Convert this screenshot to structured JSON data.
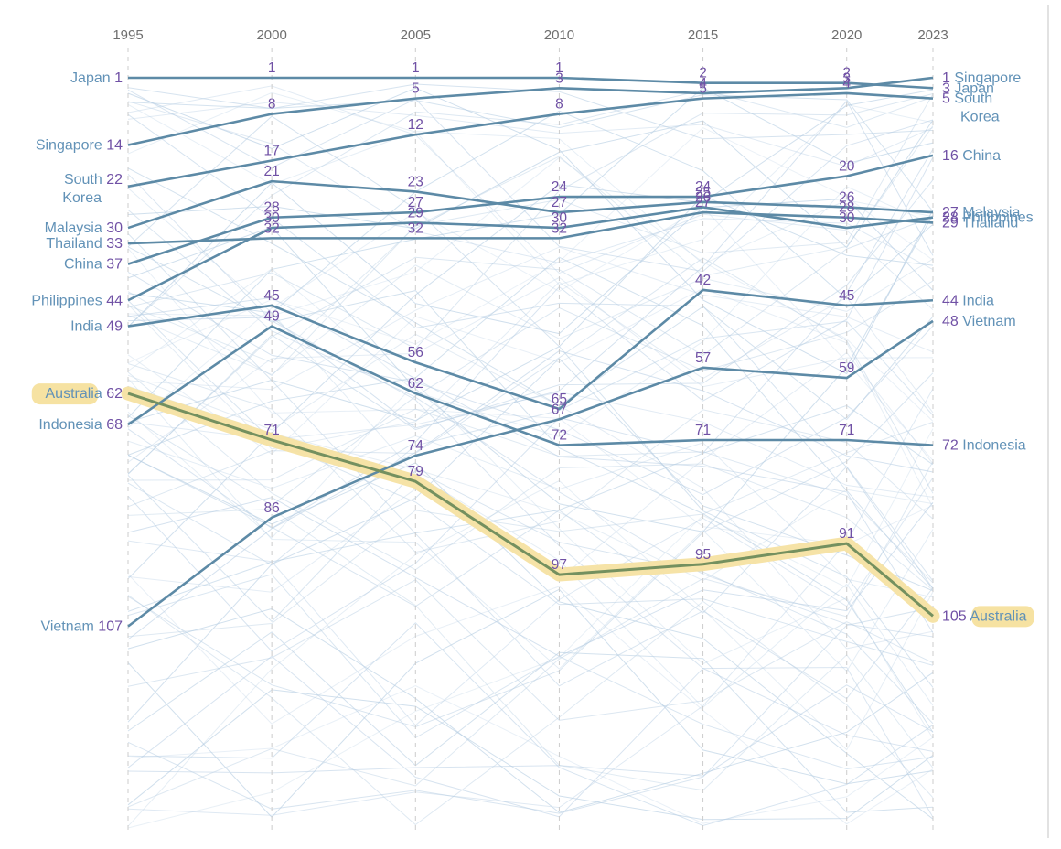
{
  "chart_data": {
    "type": "line",
    "subtype": "bump-rank-chart",
    "x": [
      1995,
      2000,
      2005,
      2010,
      2015,
      2020,
      2023
    ],
    "x_tick_labels": [
      "1995",
      "2000",
      "2005",
      "2010",
      "2015",
      "2020",
      "2023"
    ],
    "y_axis": "rank (1 = best, inverted, lower on chart = worse)",
    "grid": "vertical dashed gridlines at each year",
    "legend_position": "none (labels at line endpoints)",
    "series": [
      {
        "name": "Japan",
        "values": [
          1,
          1,
          1,
          1,
          2,
          2,
          3
        ],
        "highlighted": false
      },
      {
        "name": "Singapore",
        "values": [
          14,
          8,
          5,
          3,
          4,
          3,
          1
        ],
        "highlighted": false
      },
      {
        "name": "South Korea",
        "values": [
          22,
          17,
          12,
          8,
          5,
          4,
          5
        ],
        "highlighted": false
      },
      {
        "name": "Malaysia",
        "values": [
          30,
          21,
          23,
          27,
          25,
          26,
          27
        ],
        "highlighted": false
      },
      {
        "name": "Thailand",
        "values": [
          33,
          32,
          32,
          32,
          27,
          28,
          29
        ],
        "highlighted": false
      },
      {
        "name": "China",
        "values": [
          37,
          28,
          27,
          24,
          24,
          20,
          16
        ],
        "highlighted": false
      },
      {
        "name": "Philippines",
        "values": [
          44,
          30,
          29,
          30,
          26,
          30,
          28
        ],
        "highlighted": false
      },
      {
        "name": "India",
        "values": [
          49,
          45,
          56,
          65,
          42,
          45,
          44
        ],
        "highlighted": false
      },
      {
        "name": "Australia",
        "values": [
          62,
          71,
          79,
          97,
          95,
          91,
          105
        ],
        "highlighted": true
      },
      {
        "name": "Indonesia",
        "values": [
          68,
          49,
          62,
          72,
          71,
          71,
          72
        ],
        "highlighted": false
      },
      {
        "name": "Vietnam",
        "values": [
          107,
          86,
          74,
          67,
          57,
          59,
          48
        ],
        "highlighted": false
      }
    ],
    "background_lines": {
      "count": 88,
      "rank_min": 2,
      "rank_max": 146,
      "note": "faint unlabeled lines of other countries"
    },
    "colors": {
      "line": "#5d8aa6",
      "highlight_line": "#74905f",
      "highlight_band": "#f6e2a2",
      "value_label": "#7051a5",
      "name_label": "#6292b7",
      "axis_label": "#6e6e6e",
      "gridline": "#cccccc",
      "background_line": "#b7cee3",
      "frame": "#d8d8d8"
    }
  }
}
